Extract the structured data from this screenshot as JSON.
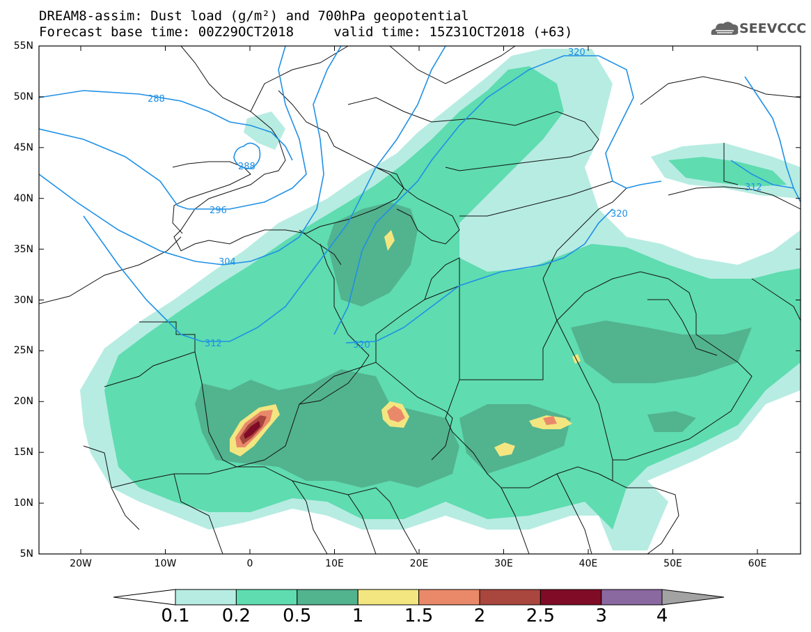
{
  "header": {
    "line1": "DREAM8-assim: Dust load (g/m²) and 700hPa geopotential",
    "line2": "Forecast base time: 00Z29OCT2018     valid time: 15Z31OCT2018 (+63)"
  },
  "logo": {
    "text": "SEEVCCC",
    "icon": "cloud-icon"
  },
  "axes": {
    "lat_labels": [
      "55N",
      "50N",
      "45N",
      "40N",
      "35N",
      "30N",
      "25N",
      "20N",
      "15N",
      "10N",
      "5N"
    ],
    "lon_labels": [
      "20W",
      "10W",
      "0",
      "10E",
      "20E",
      "30E",
      "40E",
      "50E",
      "60E"
    ]
  },
  "contours": {
    "line_color": "#1e90e6",
    "labels": [
      "288",
      "288",
      "296",
      "304",
      "312",
      "312",
      "320",
      "320",
      "320"
    ]
  },
  "colorbar": {
    "ticks": [
      "0.1",
      "0.2",
      "0.5",
      "1",
      "1.5",
      "2",
      "2.5",
      "3",
      "4"
    ],
    "colors": [
      "#ffffff",
      "#b7ece2",
      "#5fdcb0",
      "#52b38f",
      "#f3e680",
      "#e9896a",
      "#a9463d",
      "#800b26",
      "#8a68a0",
      "#a3a3a3"
    ]
  }
}
